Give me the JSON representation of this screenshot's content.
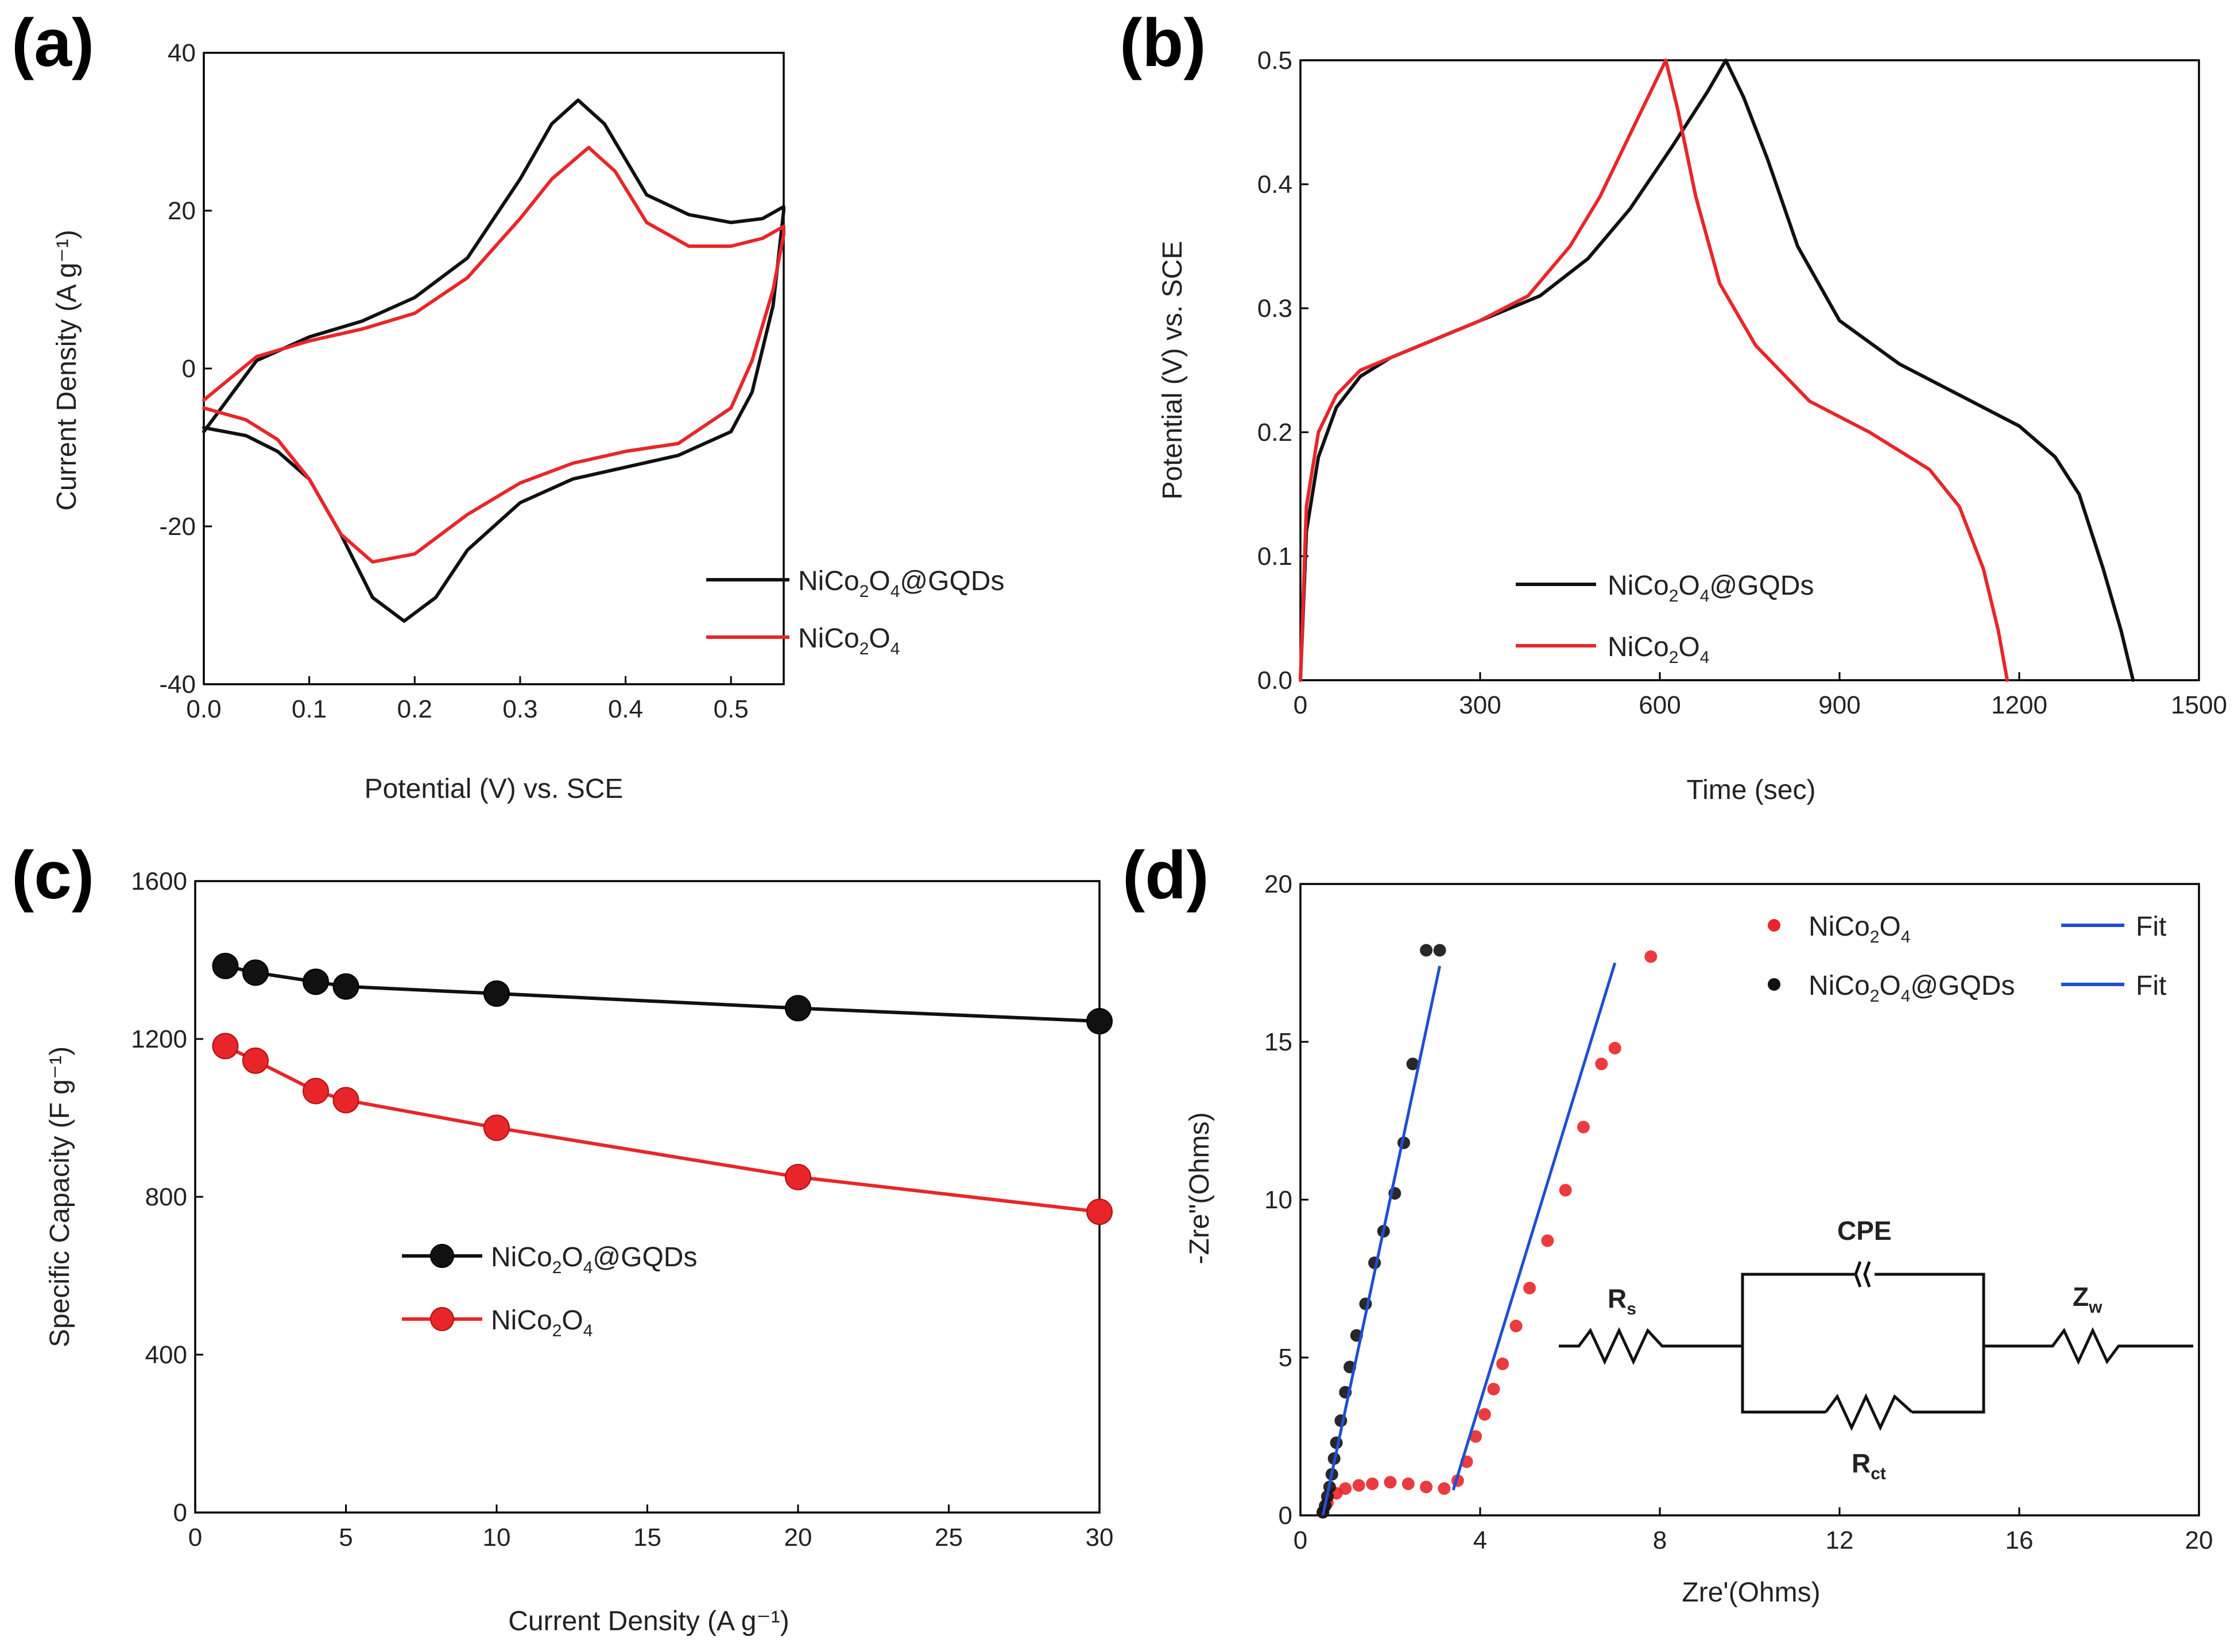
{
  "chart_data": [
    {
      "type": "line",
      "panel_label": "(a)",
      "title": "",
      "xlabel": "Potential (V) vs. SCE",
      "ylabel": "Current Density (A g⁻¹)",
      "xlim": [
        0.0,
        0.55
      ],
      "ylim": [
        -40,
        40
      ],
      "xticks": [
        "0.0",
        "0.1",
        "0.2",
        "0.3",
        "0.4",
        "0.5"
      ],
      "yticks": [
        "40",
        "20",
        "0",
        "-20",
        "-40"
      ],
      "legend_position": "bottom-right",
      "series": [
        {
          "name": "NiCo2O4@GQDs",
          "color": "#111111",
          "x": [
            0.0,
            0.05,
            0.1,
            0.15,
            0.2,
            0.25,
            0.3,
            0.33,
            0.355,
            0.38,
            0.42,
            0.46,
            0.5,
            0.53,
            0.55,
            0.55,
            0.54,
            0.52,
            0.5,
            0.45,
            0.4,
            0.35,
            0.3,
            0.25,
            0.22,
            0.19,
            0.16,
            0.13,
            0.1,
            0.07,
            0.04,
            0.0
          ],
          "y": [
            -8.0,
            1.0,
            4.0,
            6.0,
            9.0,
            14.0,
            24.0,
            31.0,
            34.0,
            31.0,
            22.0,
            19.5,
            18.5,
            19.0,
            20.5,
            20.0,
            8.0,
            -3.0,
            -8.0,
            -11.0,
            -12.5,
            -14.0,
            -17.0,
            -23.0,
            -29.0,
            -32.0,
            -29.0,
            -21.0,
            -14.0,
            -10.5,
            -8.5,
            -7.5
          ]
        },
        {
          "name": "NiCo2O4",
          "color": "#e8262a",
          "x": [
            0.0,
            0.05,
            0.1,
            0.15,
            0.2,
            0.25,
            0.3,
            0.33,
            0.365,
            0.39,
            0.42,
            0.46,
            0.5,
            0.53,
            0.55,
            0.55,
            0.54,
            0.52,
            0.5,
            0.45,
            0.4,
            0.35,
            0.3,
            0.25,
            0.2,
            0.16,
            0.13,
            0.1,
            0.07,
            0.04,
            0.0
          ],
          "y": [
            -4.0,
            1.5,
            3.5,
            5.0,
            7.0,
            11.5,
            19.0,
            24.0,
            28.0,
            25.0,
            18.5,
            15.5,
            15.5,
            16.5,
            18.0,
            17.0,
            10.0,
            1.0,
            -5.0,
            -9.5,
            -10.5,
            -12.0,
            -14.5,
            -18.5,
            -23.5,
            -24.5,
            -21.0,
            -14.0,
            -9.0,
            -6.5,
            -5.0
          ]
        }
      ]
    },
    {
      "type": "line",
      "panel_label": "(b)",
      "title": "",
      "xlabel": "Time (sec)",
      "ylabel": "Potential (V) vs. SCE",
      "xlim": [
        0,
        1500
      ],
      "ylim": [
        0.0,
        0.5
      ],
      "xticks": [
        "0",
        "300",
        "600",
        "900",
        "1200",
        "1500"
      ],
      "yticks": [
        "0.5",
        "0.4",
        "0.3",
        "0.2",
        "0.1",
        "0.0"
      ],
      "legend_position": "bottom-left",
      "series": [
        {
          "name": "NiCo2O4@GQDs",
          "color": "#111111",
          "x": [
            0,
            10,
            30,
            60,
            100,
            150,
            200,
            300,
            400,
            480,
            550,
            620,
            680,
            710,
            740,
            780,
            830,
            900,
            1000,
            1100,
            1200,
            1260,
            1300,
            1340,
            1370,
            1390
          ],
          "y": [
            0.0,
            0.12,
            0.18,
            0.22,
            0.245,
            0.26,
            0.27,
            0.29,
            0.31,
            0.34,
            0.38,
            0.43,
            0.475,
            0.5,
            0.47,
            0.42,
            0.35,
            0.29,
            0.255,
            0.23,
            0.205,
            0.18,
            0.15,
            0.09,
            0.04,
            0.0
          ]
        },
        {
          "name": "NiCo2O4",
          "color": "#e8262a",
          "x": [
            0,
            10,
            30,
            60,
            100,
            150,
            200,
            300,
            380,
            450,
            500,
            550,
            590,
            610,
            630,
            660,
            700,
            760,
            850,
            950,
            1050,
            1100,
            1140,
            1165,
            1180
          ],
          "y": [
            0.0,
            0.14,
            0.2,
            0.23,
            0.25,
            0.26,
            0.27,
            0.29,
            0.31,
            0.35,
            0.39,
            0.44,
            0.48,
            0.5,
            0.46,
            0.39,
            0.32,
            0.27,
            0.225,
            0.2,
            0.17,
            0.14,
            0.09,
            0.04,
            0.0
          ]
        }
      ]
    },
    {
      "type": "line",
      "panel_label": "(c)",
      "title": "",
      "xlabel": "Current Density (A g⁻¹)",
      "ylabel": "Specific Capacity (F g⁻¹)",
      "xlim": [
        0,
        30
      ],
      "ylim": [
        0,
        1600
      ],
      "xticks": [
        "0",
        "5",
        "10",
        "15",
        "20",
        "25",
        "30"
      ],
      "yticks": [
        "1600",
        "1200",
        "800",
        "400",
        "0"
      ],
      "legend_position": "center-left",
      "series": [
        {
          "name": "NiCo2O4@GQDs",
          "color": "#111111",
          "x": [
            1,
            2,
            4,
            5,
            10,
            20,
            30
          ],
          "y": [
            1385,
            1368,
            1345,
            1333,
            1315,
            1278,
            1245
          ]
        },
        {
          "name": "NiCo2O4",
          "color": "#e8262a",
          "x": [
            1,
            2,
            4,
            5,
            10,
            20,
            30
          ],
          "y": [
            1182,
            1145,
            1068,
            1045,
            975,
            850,
            762
          ]
        }
      ]
    },
    {
      "type": "scatter",
      "panel_label": "(d)",
      "title": "",
      "xlabel": "Zre'(Ohms)",
      "ylabel": "-Zre\"(Ohms)",
      "xlim": [
        0,
        20
      ],
      "ylim": [
        0,
        20
      ],
      "xticks": [
        "0",
        "4",
        "8",
        "12",
        "16",
        "20"
      ],
      "yticks": [
        "20",
        "15",
        "10",
        "5",
        "0"
      ],
      "legend_position": "top-right",
      "legend_fit_label": "Fit",
      "series": [
        {
          "name": "NiCo2O4",
          "color": "#e8262a",
          "x": [
            0.5,
            0.6,
            0.8,
            1.0,
            1.3,
            1.6,
            2.0,
            2.4,
            2.8,
            3.2,
            3.5,
            3.7,
            3.9,
            4.1,
            4.3,
            4.5,
            4.8,
            5.1,
            5.5,
            5.9,
            6.3,
            6.7,
            7.0,
            7.8
          ],
          "y": [
            0.1,
            0.4,
            0.7,
            0.85,
            0.95,
            1.0,
            1.05,
            1.0,
            0.9,
            0.85,
            1.1,
            1.7,
            2.5,
            3.2,
            4.0,
            4.8,
            6.0,
            7.2,
            8.7,
            10.3,
            12.3,
            14.3,
            14.8,
            17.7
          ]
        },
        {
          "name": "NiCo2O4@GQDs",
          "color": "#111111",
          "x": [
            0.5,
            0.55,
            0.6,
            0.65,
            0.7,
            0.75,
            0.8,
            0.9,
            1.0,
            1.1,
            1.25,
            1.45,
            1.65,
            1.85,
            2.1,
            2.3,
            2.5,
            2.8,
            3.1
          ],
          "y": [
            0.1,
            0.3,
            0.6,
            0.9,
            1.3,
            1.8,
            2.3,
            3.0,
            3.9,
            4.7,
            5.7,
            6.7,
            8.0,
            9.0,
            10.2,
            11.8,
            14.3,
            17.9,
            17.9
          ]
        }
      ],
      "fits": [
        {
          "name": "Fit",
          "color": "#1f4fd1",
          "x": [
            3.4,
            7.0
          ],
          "y": [
            0.8,
            17.5
          ]
        },
        {
          "name": "Fit",
          "color": "#1f4fd1",
          "x": [
            0.5,
            3.1
          ],
          "y": [
            0.0,
            17.4
          ]
        }
      ],
      "circuit": {
        "labels": [
          "R",
          "s",
          "CPE",
          "Z",
          "w",
          "R",
          "ct"
        ]
      }
    }
  ]
}
